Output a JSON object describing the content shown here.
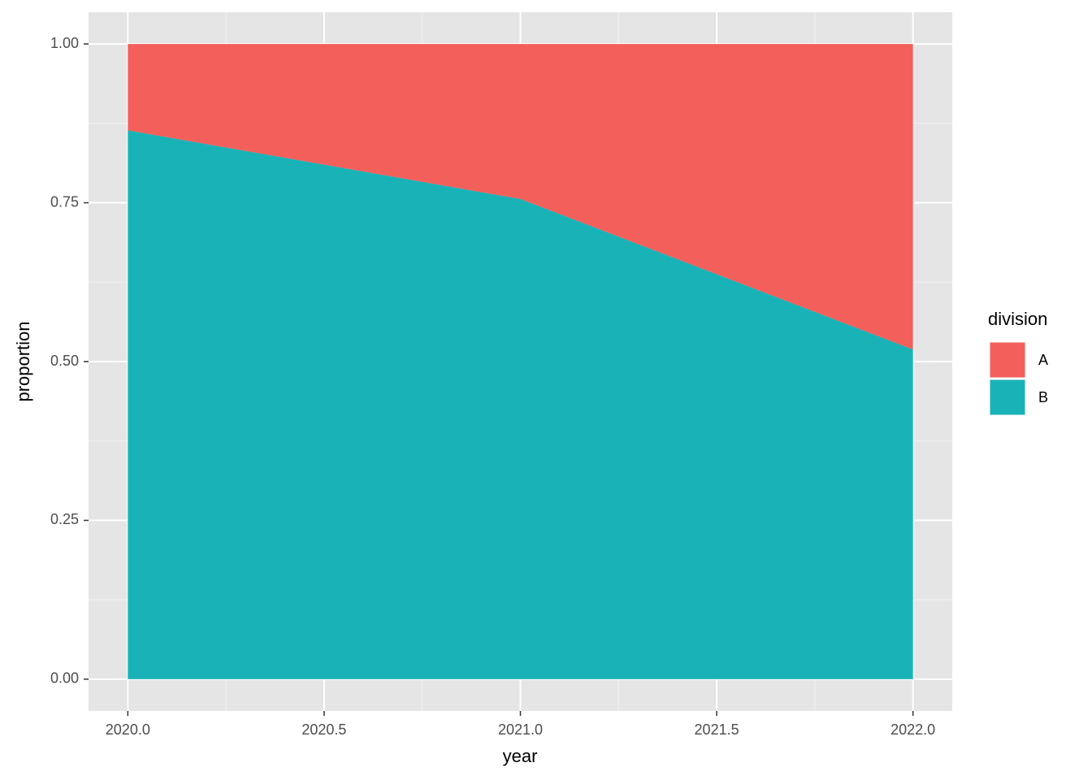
{
  "chart_data": {
    "type": "area",
    "stacked": true,
    "x_label": "year",
    "y_label": "proportion",
    "x": [
      2020,
      2021,
      2022
    ],
    "series": [
      {
        "name": "A",
        "color": "#f35f5b",
        "values": [
          0.136,
          0.244,
          0.481
        ]
      },
      {
        "name": "B",
        "color": "#19b3b7",
        "values": [
          0.864,
          0.756,
          0.519
        ]
      }
    ],
    "xlim": [
      2019.9,
      2022.1
    ],
    "ylim": [
      -0.05,
      1.05
    ],
    "xticks": [
      {
        "value": 2020,
        "label": "2020.0"
      },
      {
        "value": 2020.5,
        "label": "2020.5"
      },
      {
        "value": 2021,
        "label": "2021.0"
      },
      {
        "value": 2021.5,
        "label": "2021.5"
      },
      {
        "value": 2022,
        "label": "2022.0"
      }
    ],
    "yticks": [
      {
        "value": 0,
        "label": "0.00"
      },
      {
        "value": 0.25,
        "label": "0.25"
      },
      {
        "value": 0.5,
        "label": "0.50"
      },
      {
        "value": 0.75,
        "label": "0.75"
      },
      {
        "value": 1,
        "label": "1.00"
      }
    ],
    "grid": true,
    "legend_title": "division",
    "legend_position": "right"
  }
}
